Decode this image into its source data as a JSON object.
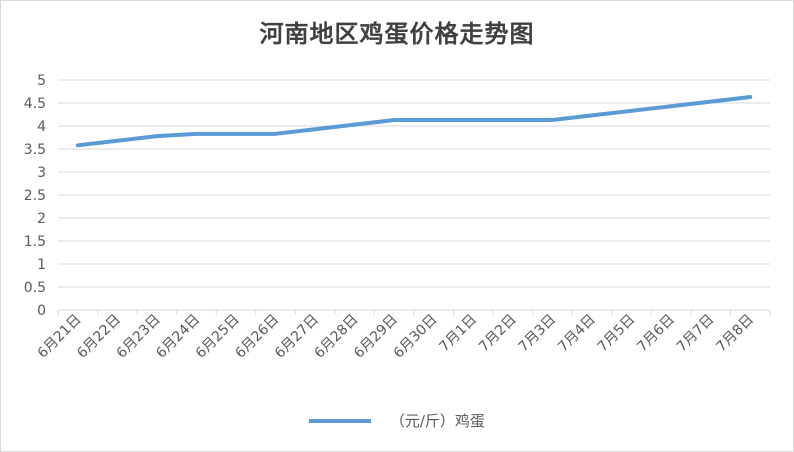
{
  "chart_data": {
    "type": "line",
    "title": "河南地区鸡蛋价格走势图",
    "categories": [
      "6月21日",
      "6月22日",
      "6月23日",
      "6月24日",
      "6月25日",
      "6月26日",
      "6月27日",
      "6月28日",
      "6月29日",
      "6月30日",
      "7月1日",
      "7月2日",
      "7月3日",
      "7月4日",
      "7月5日",
      "7月6日",
      "7月7日",
      "7月8日"
    ],
    "series": [
      {
        "name": "（元/斤）鸡蛋",
        "values": [
          3.58,
          3.68,
          3.78,
          3.83,
          3.83,
          3.83,
          3.93,
          4.03,
          4.13,
          4.13,
          4.13,
          4.13,
          4.13,
          4.23,
          4.33,
          4.43,
          4.53,
          4.63
        ],
        "color": "#5b9bd5"
      }
    ],
    "ylim": [
      0,
      5
    ],
    "yticks": [
      "0",
      "0.5",
      "1",
      "1.5",
      "2",
      "2.5",
      "3",
      "3.5",
      "4",
      "4.5",
      "5"
    ],
    "grid": true,
    "legend_position": "bottom"
  },
  "colors": {
    "line": "#5b9bd5",
    "grid": "#d9d9d9",
    "axis_text": "#595959",
    "title_text": "#404040"
  }
}
